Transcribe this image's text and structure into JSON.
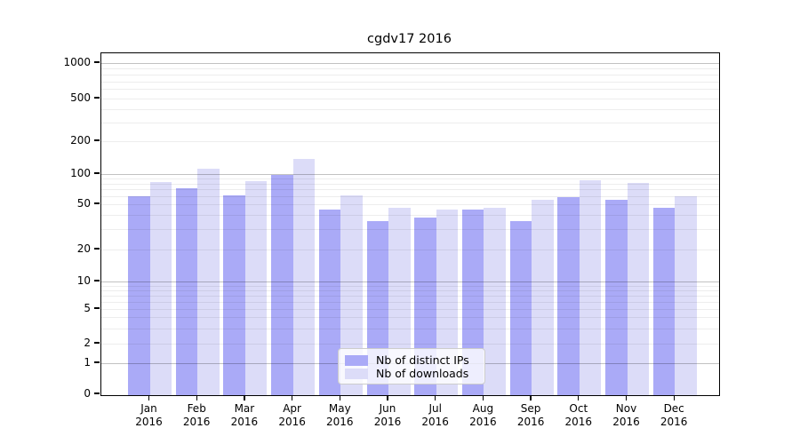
{
  "chart_data": {
    "type": "bar",
    "title": "cgdv17 2016",
    "categories": [
      "Jan",
      "Feb",
      "Mar",
      "Apr",
      "May",
      "Jun",
      "Jul",
      "Aug",
      "Sep",
      "Oct",
      "Nov",
      "Dec"
    ],
    "category_year": "2016",
    "series": [
      {
        "name": "Nb of distinct IPs",
        "color": "#aaaaf7",
        "values": [
          61,
          74,
          62,
          100,
          46,
          36,
          39,
          46,
          36,
          60,
          57,
          47
        ]
      },
      {
        "name": "Nb of downloads",
        "color": "#dcdcf8",
        "values": [
          85,
          114,
          87,
          140,
          62,
          47,
          46,
          47,
          57,
          89,
          83,
          61
        ]
      }
    ],
    "xlabel": "",
    "ylabel": "",
    "y_axis": {
      "scale": "symlog",
      "ylim": [
        0,
        1000
      ],
      "tick_values": [
        0,
        1,
        2,
        5,
        10,
        20,
        50,
        100,
        200,
        500,
        1000
      ],
      "tick_labels": [
        "0",
        "1",
        "2",
        "5",
        "10",
        "20",
        "50",
        "100",
        "200",
        "500",
        "1000"
      ],
      "minor_gridline_values": [
        3,
        4,
        6,
        7,
        8,
        9,
        30,
        40,
        60,
        70,
        80,
        90,
        300,
        400,
        600,
        700,
        800,
        900
      ]
    },
    "grid": "on",
    "legend": {
      "position": "lower center",
      "entries": [
        "Nb of distinct IPs",
        "Nb of downloads"
      ]
    }
  }
}
